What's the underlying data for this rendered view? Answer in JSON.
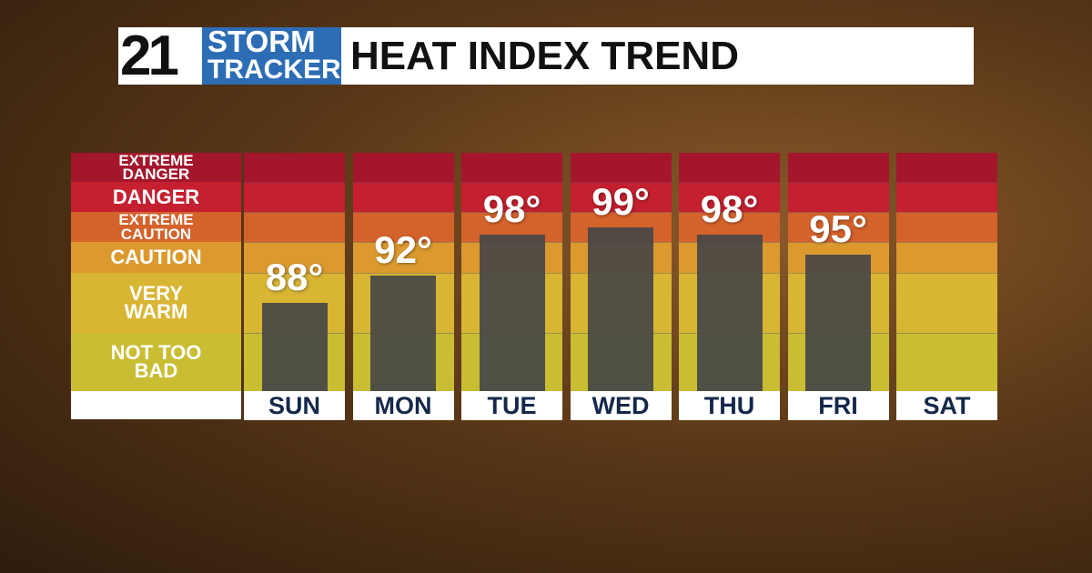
{
  "header": {
    "channel": "21",
    "brand_lines": [
      "STORM",
      "TRACKER"
    ]
  },
  "chart_data": {
    "type": "bar",
    "title": "HEAT INDEX TREND",
    "categories": [
      "SUN",
      "MON",
      "TUE",
      "WED",
      "THU",
      "FRI",
      "SAT"
    ],
    "values": [
      88,
      92,
      98,
      99,
      98,
      95,
      null
    ],
    "value_labels": [
      "88°",
      "92°",
      "98°",
      "99°",
      "98°",
      "95°",
      null
    ],
    "color": "#474747",
    "ylim": [
      75,
      110
    ],
    "zones": [
      {
        "label": "EXTREME DANGER",
        "color": "#a3162b"
      },
      {
        "label": "DANGER",
        "color": "#c5202f"
      },
      {
        "label": "EXTREME CAUTION",
        "color": "#d4622b"
      },
      {
        "label": "CAUTION",
        "color": "#dc9a2e"
      },
      {
        "label": "VERY WARM",
        "color": "#d9b534"
      },
      {
        "label": "NOT TOO BAD",
        "color": "#c9bd33"
      }
    ]
  }
}
